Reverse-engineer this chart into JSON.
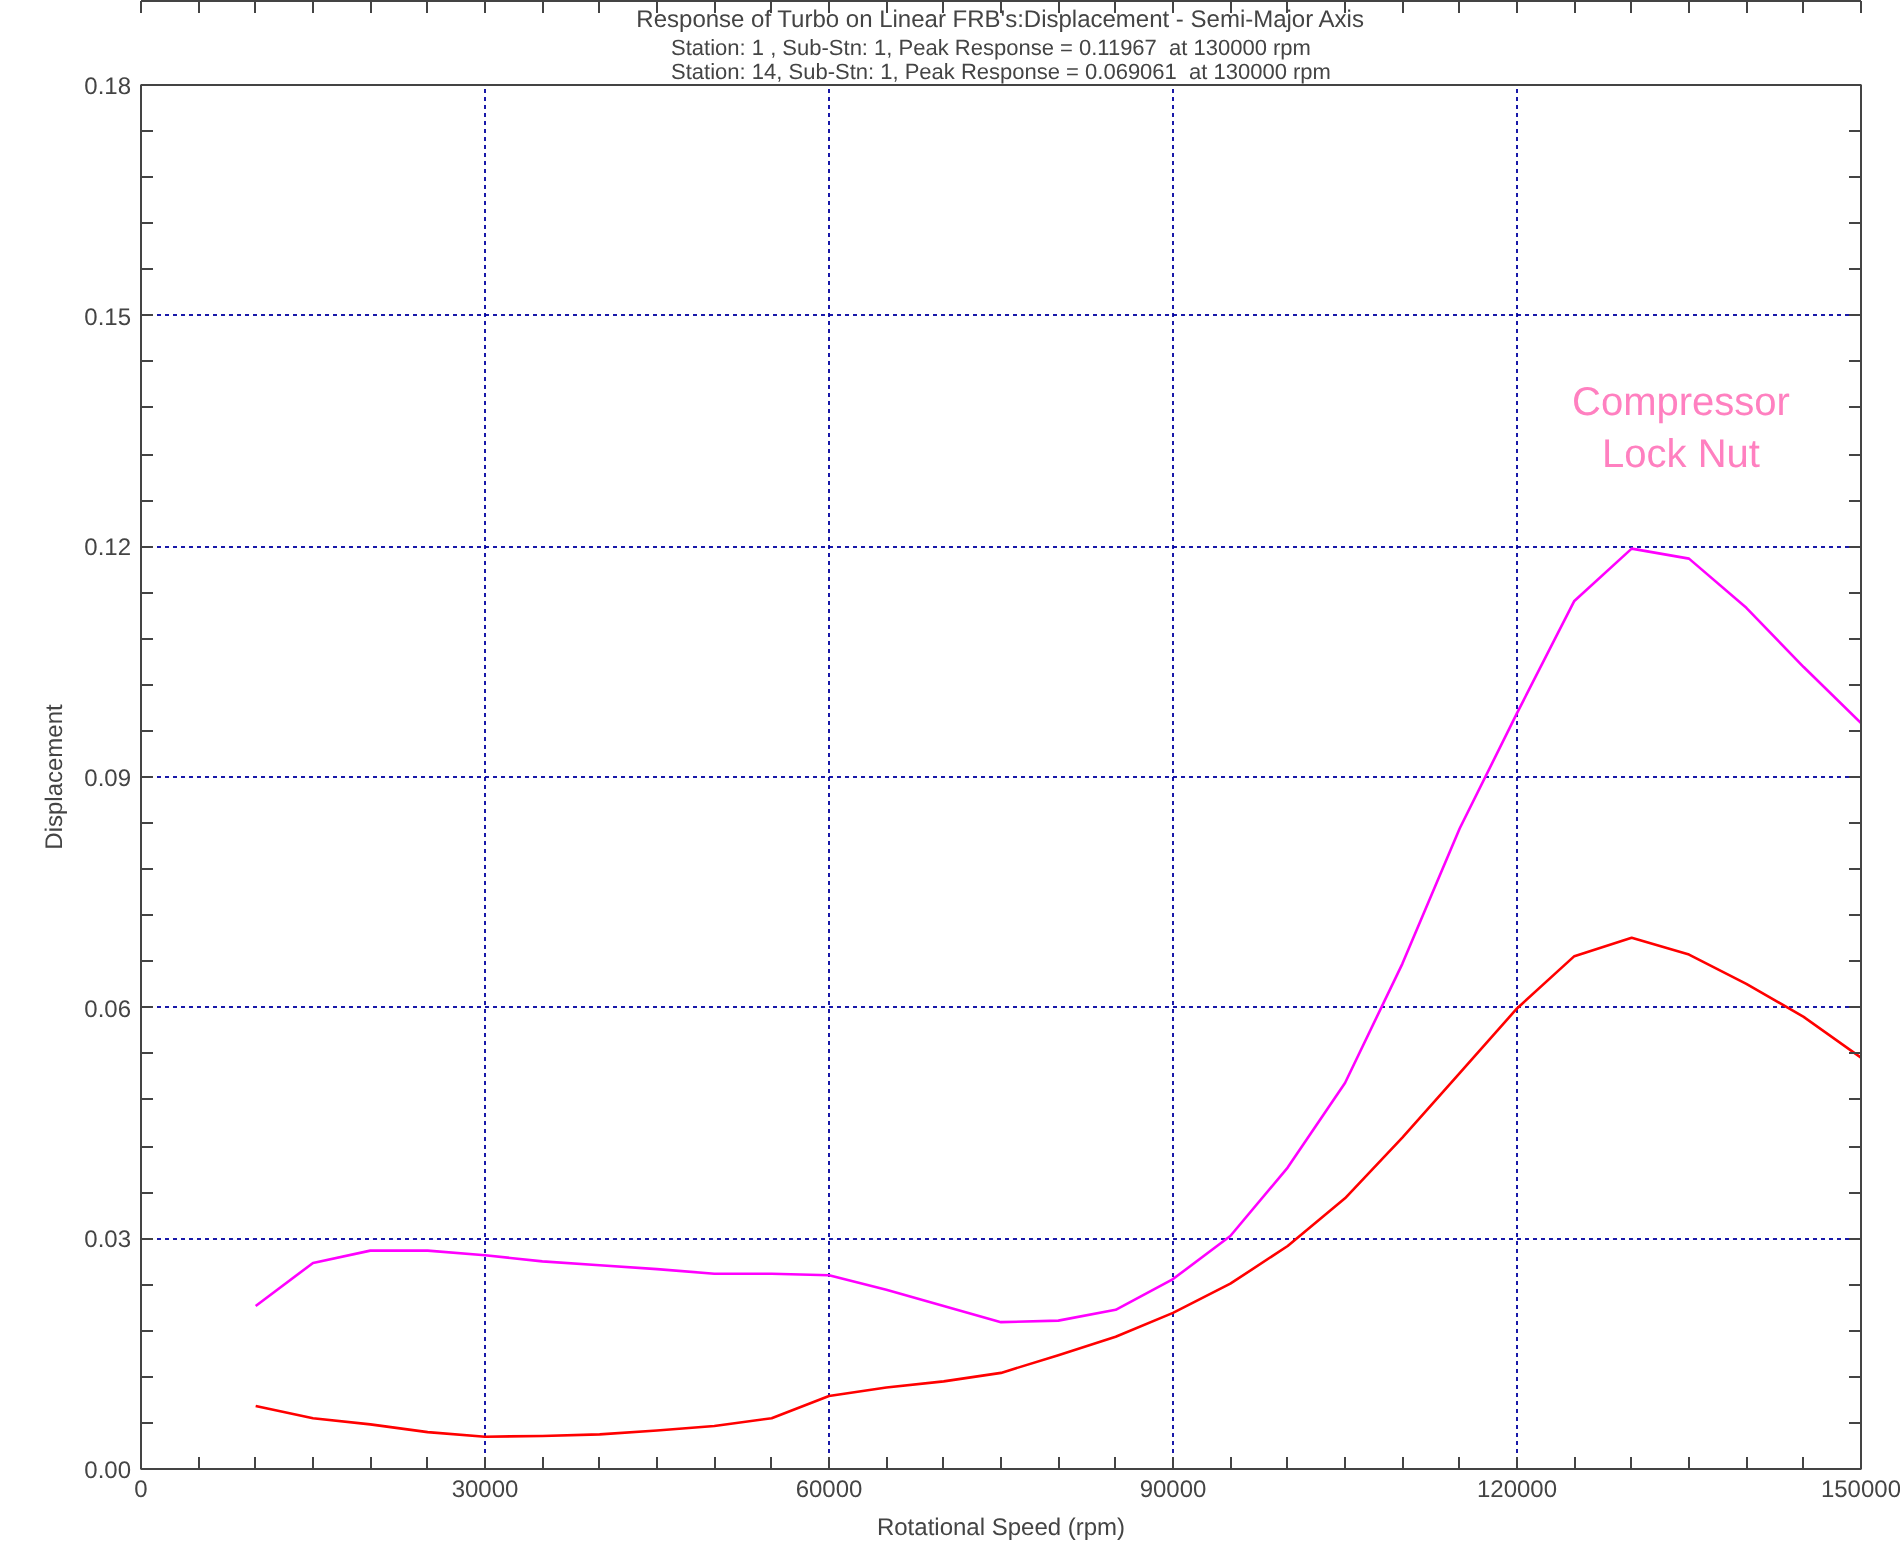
{
  "chart_data": {
    "type": "line",
    "title": "Response of Turbo on Linear FRB's:Displacement - Semi-Major Axis",
    "subtitle": "Station: 1 , Sub-Stn: 1, Peak Response = 0.11967  at 130000 rpm\nStation: 14, Sub-Stn: 1, Peak Response = 0.069061  at 130000 rpm",
    "xlabel": "Rotational Speed (rpm)",
    "ylabel": "Displacement",
    "x": [
      10000,
      15000,
      20000,
      25000,
      30000,
      35000,
      40000,
      45000,
      50000,
      55000,
      60000,
      65000,
      70000,
      75000,
      80000,
      85000,
      90000,
      95000,
      100000,
      105000,
      110000,
      115000,
      120000,
      125000,
      130000,
      135000,
      140000,
      145000,
      150000
    ],
    "series": [
      {
        "color": "#ff00ff",
        "values": [
          0.0212,
          0.0268,
          0.0284,
          0.0284,
          0.0278,
          0.027,
          0.0265,
          0.026,
          0.0254,
          0.0254,
          0.0252,
          0.0233,
          0.0212,
          0.0191,
          0.0193,
          0.0207,
          0.0247,
          0.0303,
          0.0392,
          0.0502,
          0.0657,
          0.0833,
          0.0983,
          0.1129,
          0.1197,
          0.1184,
          0.112,
          0.1043,
          0.097
        ]
      },
      {
        "color": "#ff0000",
        "values": [
          0.0082,
          0.0066,
          0.0058,
          0.0048,
          0.0042,
          0.0043,
          0.0045,
          0.005,
          0.0056,
          0.0066,
          0.0095,
          0.0106,
          0.0114,
          0.0125,
          0.0148,
          0.0172,
          0.0203,
          0.0241,
          0.029,
          0.0352,
          0.0431,
          0.0515,
          0.0599,
          0.0667,
          0.0691,
          0.0669,
          0.0631,
          0.0588,
          0.0535
        ]
      }
    ],
    "xlim": [
      0,
      150000
    ],
    "xticks": [
      0,
      30000,
      60000,
      90000,
      120000,
      150000
    ],
    "ylim": [
      0,
      0.18
    ],
    "yticks": [
      {
        "value": 0,
        "label": "0.00"
      },
      {
        "value": 0.03,
        "label": "0.03"
      },
      {
        "value": 0.06,
        "label": "0.06"
      },
      {
        "value": 0.09,
        "label": "0.09"
      },
      {
        "value": 0.12,
        "label": "0.12"
      },
      {
        "value": 0.15,
        "label": "0.15"
      },
      {
        "value": 0.18,
        "label": "0.18"
      }
    ],
    "grid": true,
    "line_style": "solid",
    "annotations": [
      "Compressor\nLock Nut"
    ]
  }
}
